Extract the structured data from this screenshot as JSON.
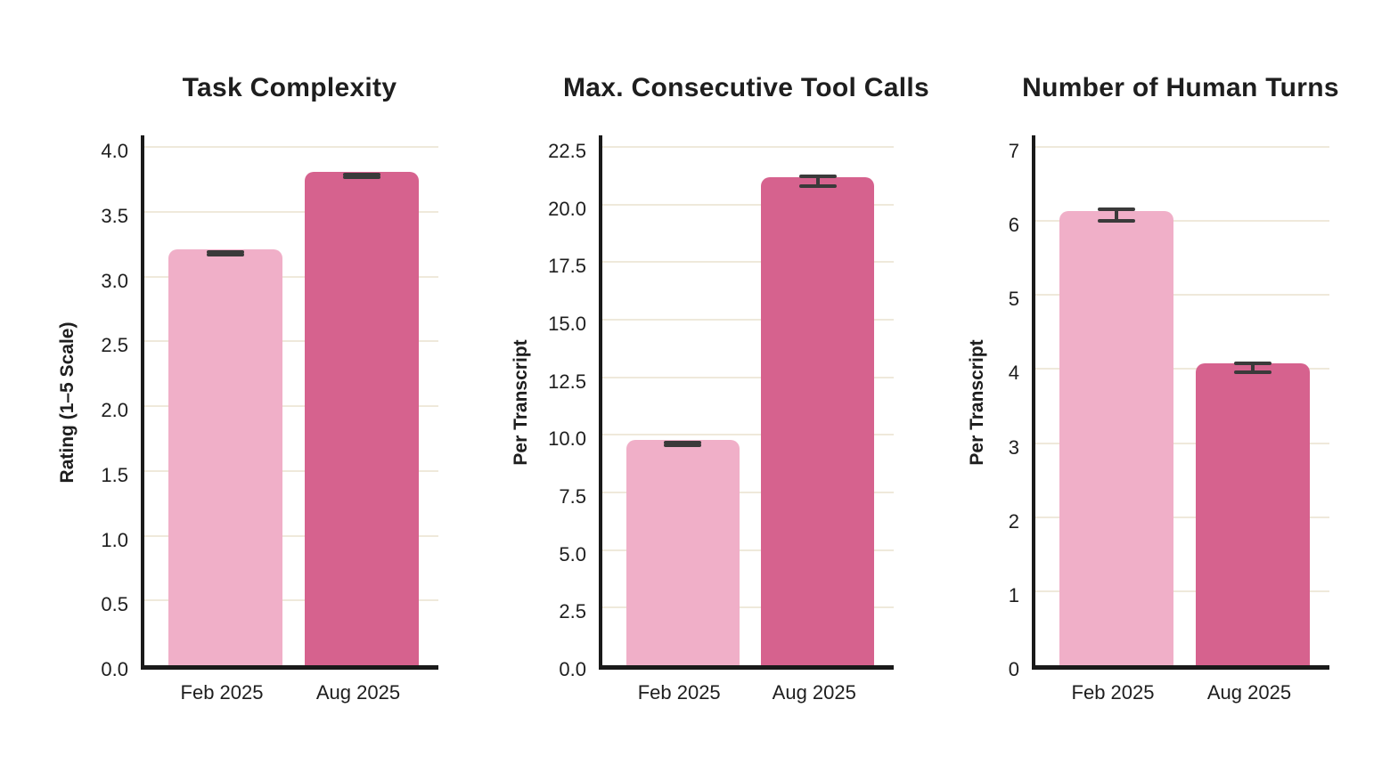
{
  "palette": {
    "background": "#FFFFFF",
    "bar_feb_2025": "#F0AFC8",
    "bar_aug_2025": "#D6628E",
    "error_bar": "#3A3A3A",
    "gridline": "#EFE9DB",
    "axis": "#1A1A1A",
    "text": "#1E1E1E"
  },
  "chart_data": [
    {
      "type": "bar",
      "title": "Task Complexity",
      "ylabel": "Rating (1–5 Scale)",
      "xlabel": "",
      "categories": [
        "Feb 2025",
        "Aug 2025"
      ],
      "values": [
        3.21,
        3.81
      ],
      "errors": [
        0.01,
        0.01
      ],
      "bar_colors": [
        "#F0AFC8",
        "#D6628E"
      ],
      "ylim": [
        0,
        4.0
      ],
      "yticks": {
        "values": [
          0,
          0.5,
          1,
          1.5,
          2,
          2.5,
          3,
          3.5,
          4
        ],
        "labels": [
          "0.0",
          "0.5",
          "1.0",
          "1.5",
          "2.0",
          "2.5",
          "3.0",
          "3.5",
          "4.0"
        ]
      },
      "grid": true,
      "legend": false
    },
    {
      "type": "bar",
      "title": "Max. Consecutive Tool Calls",
      "ylabel": "Per Transcript",
      "xlabel": "",
      "categories": [
        "Feb 2025",
        "Aug 2025"
      ],
      "values": [
        9.8,
        21.2
      ],
      "errors": [
        0.05,
        0.2
      ],
      "bar_colors": [
        "#F0AFC8",
        "#D6628E"
      ],
      "ylim": [
        0,
        22.5
      ],
      "yticks": {
        "values": [
          0,
          2.5,
          5,
          7.5,
          10,
          12.5,
          15,
          17.5,
          20,
          22.5
        ],
        "labels": [
          "0.0",
          "2.5",
          "5.0",
          "7.5",
          "10.0",
          "12.5",
          "15.0",
          "17.5",
          "20.0",
          "22.5"
        ]
      },
      "grid": true,
      "legend": false
    },
    {
      "type": "bar",
      "title": "Number of Human Turns",
      "ylabel": "Per Transcript",
      "xlabel": "",
      "categories": [
        "Feb 2025",
        "Aug 2025"
      ],
      "values": [
        6.14,
        4.08
      ],
      "errors": [
        0.08,
        0.06
      ],
      "bar_colors": [
        "#F0AFC8",
        "#D6628E"
      ],
      "ylim": [
        0,
        7
      ],
      "yticks": {
        "values": [
          0,
          1,
          2,
          3,
          4,
          5,
          6,
          7
        ],
        "labels": [
          "0",
          "1",
          "2",
          "3",
          "4",
          "5",
          "6",
          "7"
        ]
      },
      "grid": true,
      "legend": false
    }
  ]
}
